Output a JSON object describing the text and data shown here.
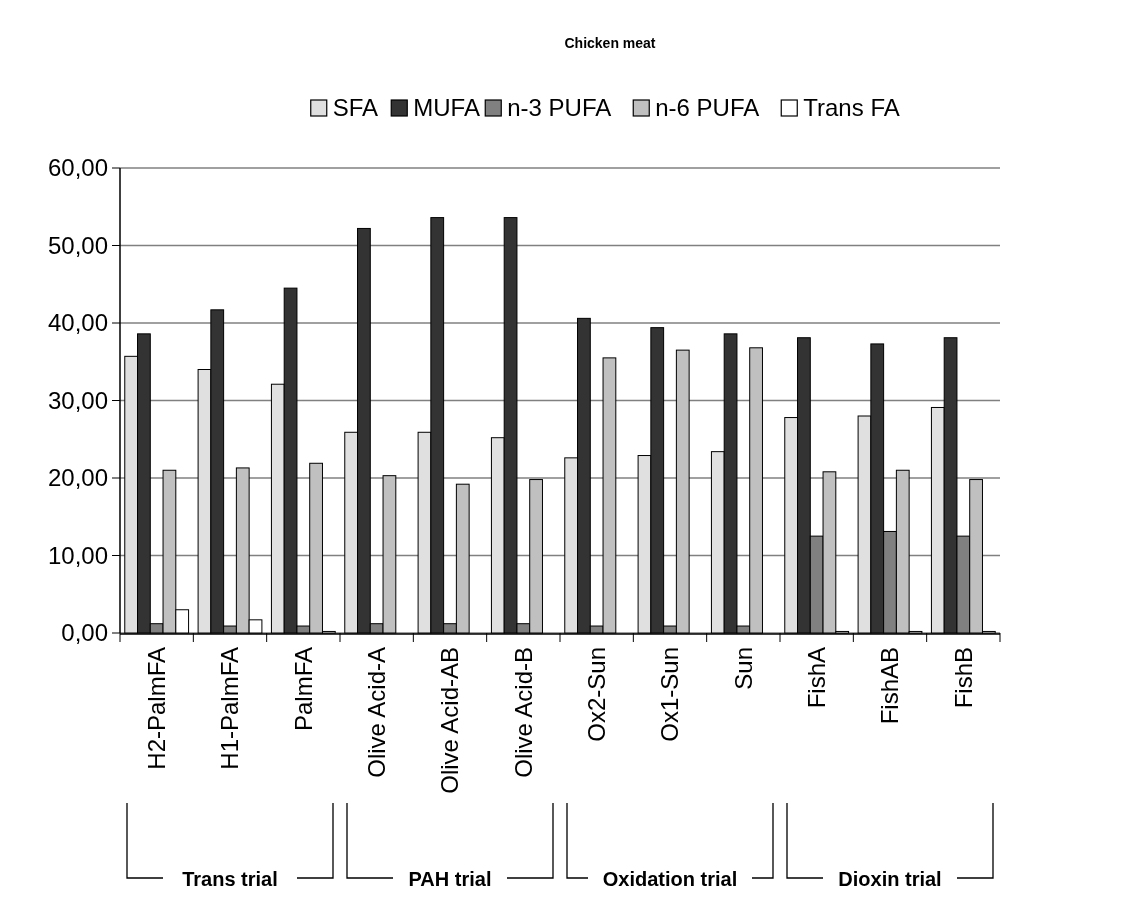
{
  "chart_data": {
    "type": "bar",
    "title": "Chicken meat",
    "categories": [
      "H2-PalmFA",
      "H1-PalmFA",
      "PalmFA",
      "Olive Acid-A",
      "Olive Acid-AB",
      "Olive Acid-B",
      "Ox2-Sun",
      "Ox1-Sun",
      "Sun",
      "FishA",
      "FishAB",
      "FishB"
    ],
    "series": [
      {
        "name": "SFA",
        "color": "#e0e0e0",
        "values": [
          35.7,
          34.0,
          32.1,
          25.9,
          25.9,
          25.2,
          22.6,
          22.9,
          23.4,
          27.8,
          28.0,
          29.1
        ]
      },
      {
        "name": "MUFA",
        "color": "#333333",
        "values": [
          38.6,
          41.7,
          44.5,
          52.2,
          53.6,
          53.6,
          40.6,
          39.4,
          38.6,
          38.1,
          37.3,
          38.1
        ]
      },
      {
        "name": "n-3 PUFA",
        "color": "#808080",
        "values": [
          1.2,
          0.9,
          0.9,
          1.2,
          1.2,
          1.2,
          0.9,
          0.9,
          0.9,
          12.5,
          13.1,
          12.5
        ]
      },
      {
        "name": "n-6 PUFA",
        "color": "#c0c0c0",
        "values": [
          21.0,
          21.3,
          21.9,
          20.3,
          19.2,
          19.8,
          35.5,
          36.5,
          36.8,
          20.8,
          21.0,
          19.8
        ]
      },
      {
        "name": "Trans FA",
        "color": "#ffffff",
        "values": [
          3.0,
          1.7,
          0.2,
          0,
          0,
          0,
          0,
          0,
          0,
          0.2,
          0.2,
          0.2
        ]
      }
    ],
    "ylim": [
      0,
      60
    ],
    "yticks": [
      {
        "value": 0,
        "label": "0,00"
      },
      {
        "value": 10,
        "label": "10,00"
      },
      {
        "value": 20,
        "label": "20,00"
      },
      {
        "value": 30,
        "label": "30,00"
      },
      {
        "value": 40,
        "label": "40,00"
      },
      {
        "value": 50,
        "label": "50,00"
      },
      {
        "value": 60,
        "label": "60,00"
      }
    ],
    "grid": "y",
    "legend": "top",
    "annotations": [
      "Trans  trial",
      "PAH  trial",
      "Oxidation trial",
      "Dioxin trial"
    ]
  }
}
